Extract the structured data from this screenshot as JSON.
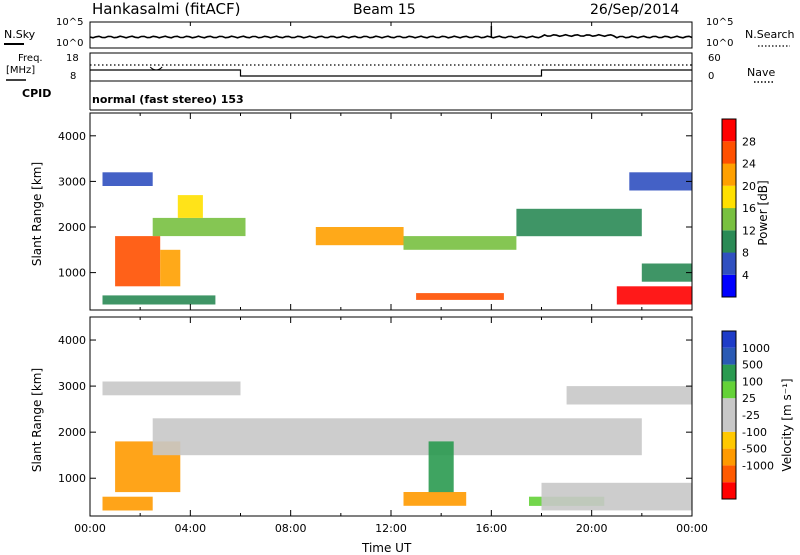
{
  "header": {
    "station": "Hankasalmi (fitACF)",
    "beam": "Beam 15",
    "date": "26/Sep/2014"
  },
  "summary_panel": {
    "nsky_label": "N.Sky",
    "nsky_ticks": [
      "10^5",
      "10^0"
    ],
    "nsearch_label": "N.Search",
    "nsearch_ticks": [
      "10^5",
      "10^0"
    ],
    "freq_label": "Freq.",
    "freq_unit": "[MHz]",
    "freq_ticks": [
      "18",
      "8"
    ],
    "nave_label": "Nave",
    "nave_ticks": [
      "60",
      "0"
    ],
    "cpid_label": "CPID",
    "cpid_text": "normal (fast stereo) 153"
  },
  "colors": {
    "power": [
      "#0000ff",
      "#3050c0",
      "#2a8a55",
      "#78c040",
      "#ffe000",
      "#ffa000",
      "#ff5000",
      "#ff0000"
    ],
    "velocity": [
      "#ff0000",
      "#ff5a00",
      "#ff9a00",
      "#ffc800",
      "#c8c8c8",
      "#c8c8c8",
      "#64d238",
      "#2a9a50",
      "#2a5ab4",
      "#1e3cc8"
    ]
  },
  "chart_data": [
    {
      "type": "heatmap",
      "quantity": "Power",
      "xlabel": "",
      "ylabel": "Slant Range [km]",
      "xlim": [
        "00:00",
        "24:00"
      ],
      "ylim": [
        180,
        4500
      ],
      "y_ticks": [
        "1000",
        "2000",
        "3000",
        "4000"
      ],
      "colorbar_label": "Power [dB]",
      "colorbar_ticks": [
        "4",
        "8",
        "12",
        "16",
        "20",
        "24",
        "28"
      ],
      "colorbar_range": [
        0,
        32
      ],
      "bands": [
        {
          "t0": 1.0,
          "t1": 2.8,
          "r0": 700,
          "r1": 1800,
          "value": 27
        },
        {
          "t0": 2.8,
          "t1": 3.6,
          "r0": 700,
          "r1": 1500,
          "value": 22
        },
        {
          "t0": 2.5,
          "t1": 6.2,
          "r0": 1800,
          "r1": 2200,
          "value": 12
        },
        {
          "t0": 3.5,
          "t1": 4.5,
          "r0": 2200,
          "r1": 2700,
          "value": 16
        },
        {
          "t0": 9.0,
          "t1": 12.5,
          "r0": 1600,
          "r1": 2000,
          "value": 20
        },
        {
          "t0": 12.5,
          "t1": 17.0,
          "r0": 1500,
          "r1": 1800,
          "value": 14
        },
        {
          "t0": 17.0,
          "t1": 22.0,
          "r0": 1800,
          "r1": 2400,
          "value": 10
        },
        {
          "t0": 13.0,
          "t1": 16.5,
          "r0": 400,
          "r1": 550,
          "value": 26
        },
        {
          "t0": 21.0,
          "t1": 24.0,
          "r0": 300,
          "r1": 700,
          "value": 28
        },
        {
          "t0": 22.0,
          "t1": 24.0,
          "r0": 800,
          "r1": 1200,
          "value": 8
        },
        {
          "t0": 0.5,
          "t1": 5.0,
          "r0": 300,
          "r1": 500,
          "value": 10
        },
        {
          "t0": 0.5,
          "t1": 2.5,
          "r0": 2900,
          "r1": 3200,
          "value": 6
        },
        {
          "t0": 21.5,
          "t1": 24.0,
          "r0": 2800,
          "r1": 3200,
          "value": 6
        }
      ]
    },
    {
      "type": "heatmap",
      "quantity": "Velocity",
      "xlabel": "Time UT",
      "ylabel": "Slant Range [km]",
      "xlim": [
        "00:00",
        "24:00"
      ],
      "x_ticks": [
        "00:00",
        "04:00",
        "08:00",
        "12:00",
        "16:00",
        "20:00",
        "00:00"
      ],
      "ylim": [
        180,
        4500
      ],
      "y_ticks": [
        "1000",
        "2000",
        "3000",
        "4000"
      ],
      "colorbar_label": "Velocity [m s⁻¹]",
      "colorbar_ticks": [
        "1000",
        "500",
        "100",
        "25",
        "-25",
        "-100",
        "-500",
        "-1000"
      ],
      "bands": [
        {
          "t0": 1.0,
          "t1": 3.6,
          "r0": 700,
          "r1": 1800,
          "value": -100
        },
        {
          "t0": 0.5,
          "t1": 2.5,
          "r0": 300,
          "r1": 600,
          "value": -300
        },
        {
          "t0": 2.5,
          "t1": 22.0,
          "r0": 1500,
          "r1": 2300,
          "value": 0
        },
        {
          "t0": 12.5,
          "t1": 15.0,
          "r0": 400,
          "r1": 700,
          "value": -400
        },
        {
          "t0": 17.5,
          "t1": 20.5,
          "r0": 400,
          "r1": 600,
          "value": 80
        },
        {
          "t0": 18.0,
          "t1": 24.0,
          "r0": 300,
          "r1": 900,
          "value": 0
        },
        {
          "t0": 19.0,
          "t1": 24.0,
          "r0": 2600,
          "r1": 3000,
          "value": 0
        },
        {
          "t0": 0.5,
          "t1": 6.0,
          "r0": 2800,
          "r1": 3100,
          "value": 0
        },
        {
          "t0": 13.5,
          "t1": 14.5,
          "r0": 700,
          "r1": 1800,
          "value": 200
        }
      ]
    }
  ]
}
